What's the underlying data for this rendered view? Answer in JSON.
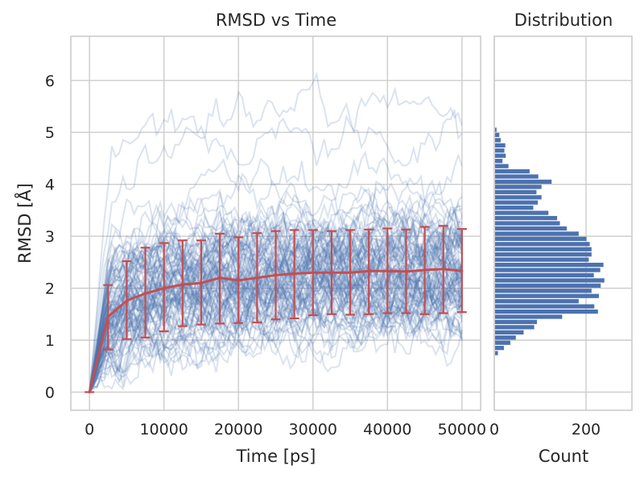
{
  "chart_data": [
    {
      "type": "line",
      "title": "RMSD vs Time",
      "xlabel": "Time [ps]",
      "ylabel": "RMSD [Å]",
      "xlim": [
        -2500,
        52500
      ],
      "ylim": [
        -0.35,
        6.85
      ],
      "xticks": [
        0,
        10000,
        20000,
        30000,
        40000,
        50000
      ],
      "xtick_labels": [
        "0",
        "10000",
        "20000",
        "30000",
        "40000",
        "50000"
      ],
      "yticks": [
        0,
        1,
        2,
        3,
        4,
        5,
        6
      ],
      "ytick_labels": [
        "0",
        "1",
        "2",
        "3",
        "4",
        "5",
        "6"
      ],
      "grid": true,
      "colors": {
        "trajectories": "#4c72b0",
        "mean": "#c44e52",
        "grid": "#cccccc",
        "frame": "#cccccc",
        "text": "#262626"
      },
      "trajectory_count": 100,
      "trajectory_style": "translucent thin lines (alpha ~0.2)",
      "mean_series": {
        "x": [
          0,
          2500,
          5000,
          7500,
          10000,
          12500,
          15000,
          17500,
          20000,
          22500,
          25000,
          27500,
          30000,
          32500,
          35000,
          37500,
          40000,
          42500,
          45000,
          47500,
          50000
        ],
        "y": [
          0.0,
          1.45,
          1.76,
          1.9,
          2.0,
          2.07,
          2.1,
          2.2,
          2.15,
          2.2,
          2.25,
          2.28,
          2.3,
          2.3,
          2.3,
          2.33,
          2.33,
          2.32,
          2.35,
          2.37,
          2.33
        ],
        "error_low": [
          0.0,
          0.82,
          1.02,
          1.05,
          1.17,
          1.27,
          1.3,
          1.32,
          1.33,
          1.34,
          1.4,
          1.42,
          1.48,
          1.5,
          1.49,
          1.5,
          1.52,
          1.52,
          1.5,
          1.52,
          1.54
        ],
        "error_high": [
          0.0,
          2.06,
          2.52,
          2.78,
          2.87,
          2.92,
          2.92,
          3.05,
          2.98,
          3.06,
          3.1,
          3.12,
          3.12,
          3.1,
          3.12,
          3.13,
          3.15,
          3.13,
          3.18,
          3.2,
          3.14
        ]
      }
    },
    {
      "type": "bar",
      "orientation": "horizontal",
      "title": "Distribution",
      "xlabel": "Count",
      "ylabel": "",
      "xlim": [
        0,
        300
      ],
      "ylim": [
        -0.35,
        6.85
      ],
      "xticks": [
        200
      ],
      "xtick_labels": [
        "200"
      ],
      "grid": true,
      "color": "#4c72b0",
      "bin_width": 0.1,
      "bins_lower": [
        0.7,
        0.8,
        0.9,
        1.0,
        1.1,
        1.2,
        1.3,
        1.4,
        1.5,
        1.6,
        1.7,
        1.8,
        1.9,
        2.0,
        2.1,
        2.2,
        2.3,
        2.4,
        2.5,
        2.6,
        2.7,
        2.8,
        2.9,
        3.0,
        3.1,
        3.2,
        3.3,
        3.4,
        3.5,
        3.6,
        3.7,
        3.8,
        3.9,
        4.0,
        4.1,
        4.2,
        4.3,
        4.4,
        4.5,
        4.6,
        4.7,
        4.8,
        4.9,
        5.0
      ],
      "counts": [
        8,
        21,
        35,
        47,
        64,
        87,
        93,
        148,
        226,
        218,
        184,
        228,
        212,
        232,
        240,
        217,
        231,
        238,
        206,
        212,
        212,
        208,
        201,
        184,
        158,
        143,
        137,
        118,
        85,
        95,
        103,
        92,
        103,
        125,
        96,
        77,
        31,
        18,
        25,
        22,
        24,
        14,
        11,
        5
      ]
    }
  ]
}
